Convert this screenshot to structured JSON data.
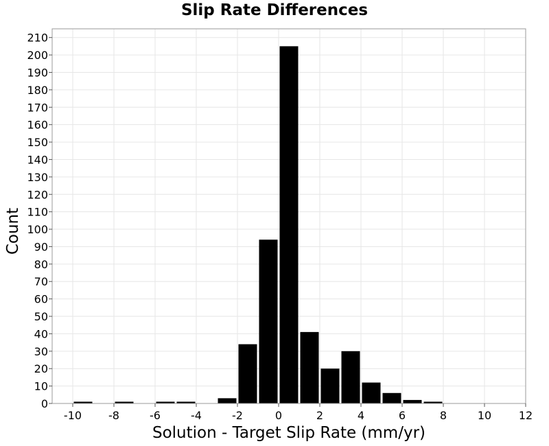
{
  "chart_data": {
    "type": "bar",
    "title": "Slip Rate Differences",
    "xlabel": "Solution - Target Slip Rate (mm/yr)",
    "ylabel": "Count",
    "bin_width": 1,
    "x": [
      -9.5,
      -7.5,
      -5.5,
      -4.5,
      -2.5,
      -1.5,
      -0.5,
      0.5,
      1.5,
      2.5,
      3.5,
      4.5,
      5.5,
      6.5,
      7.5
    ],
    "values": [
      1,
      1,
      1,
      1,
      3,
      34,
      94,
      205,
      41,
      20,
      30,
      12,
      6,
      2,
      1
    ],
    "xlim": [
      -11,
      12
    ],
    "ylim": [
      0,
      215
    ],
    "xticks": [
      -10,
      -8,
      -6,
      -4,
      -2,
      0,
      2,
      4,
      6,
      8,
      10,
      12
    ],
    "yticks": [
      0,
      10,
      20,
      30,
      40,
      50,
      60,
      70,
      80,
      90,
      100,
      110,
      120,
      130,
      140,
      150,
      160,
      170,
      180,
      190,
      200,
      210
    ],
    "grid": true,
    "bar_color": "#000000",
    "grid_color": "#e6e6e6",
    "frame_color": "#9a9a9a"
  }
}
